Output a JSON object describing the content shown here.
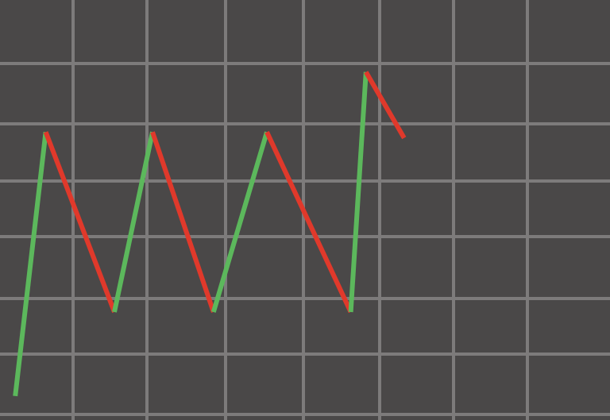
{
  "chart_data": {
    "type": "line",
    "title": "",
    "xlabel": "",
    "ylabel": "",
    "grid": true,
    "legend": "none",
    "colors": {
      "background": "#4a4848",
      "grid": "#7d7b7b",
      "up": "#5cb85c",
      "down": "#e0392b"
    },
    "xlim": [
      0,
      8
    ],
    "ylim": [
      0,
      7
    ],
    "x": [
      0.2,
      0.6,
      1.5,
      2.0,
      2.8,
      3.5,
      4.6,
      4.8,
      5.3
    ],
    "y": [
      0.4,
      4.8,
      1.8,
      4.8,
      1.8,
      4.8,
      1.8,
      5.8,
      4.7
    ]
  }
}
